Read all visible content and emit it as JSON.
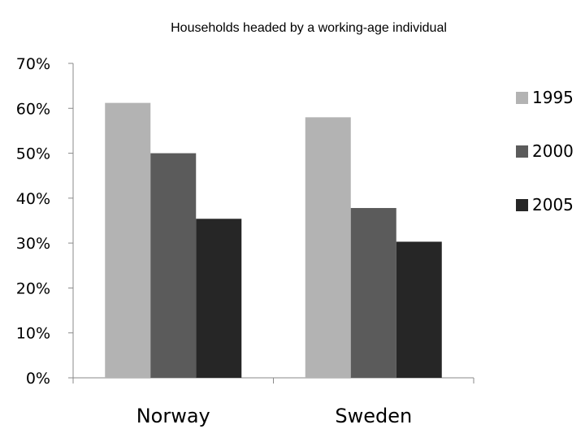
{
  "chart_data": {
    "type": "bar",
    "title": "Households headed by a working-age individual",
    "xlabel": "",
    "ylabel": "",
    "categories": [
      "Norway",
      "Sweden"
    ],
    "series": [
      {
        "name": "1995",
        "values": [
          61.2,
          58.0
        ],
        "color": "#b3b3b3"
      },
      {
        "name": "2000",
        "values": [
          50.0,
          37.8
        ],
        "color": "#5b5b5b"
      },
      {
        "name": "2005",
        "values": [
          35.4,
          30.3
        ],
        "color": "#262626"
      }
    ],
    "ylim": [
      0,
      70
    ],
    "yticks": [
      "0%",
      "10%",
      "20%",
      "30%",
      "40%",
      "50%",
      "60%",
      "70%"
    ],
    "ytick_values": [
      0,
      10,
      20,
      30,
      40,
      50,
      60,
      70
    ],
    "grid": false,
    "legend_position": "right"
  }
}
